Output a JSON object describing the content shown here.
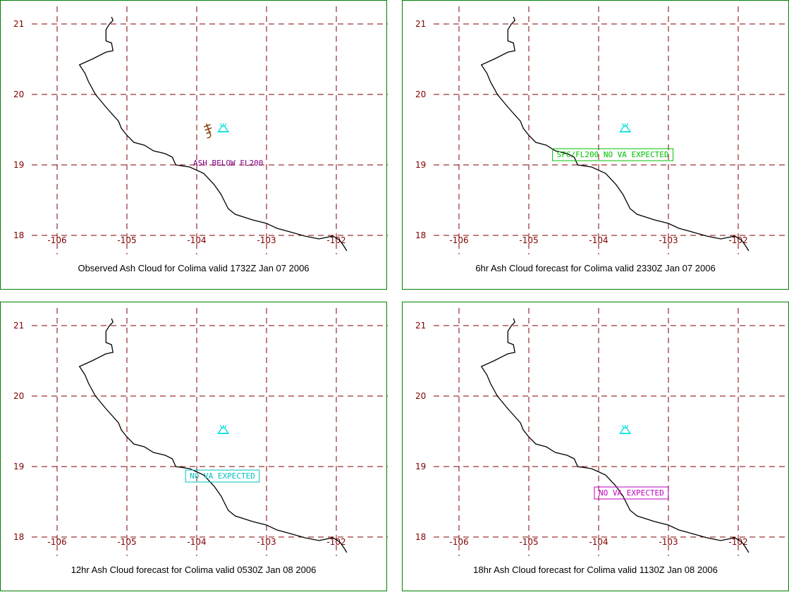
{
  "map": {
    "lon_ticks": [
      "-106",
      "-105",
      "-104",
      "-103",
      "-102"
    ],
    "lat_ticks": [
      "21",
      "20",
      "19",
      "18"
    ],
    "lon_range": [
      -106.65,
      -101.3
    ],
    "lat_range": [
      18.0,
      21.15
    ],
    "colors": {
      "frame": "#008000",
      "grid": "#800000",
      "tick_labels": "#800000",
      "coastline": "#000000",
      "volcano": "#00e0e0"
    },
    "volcano": {
      "name": "Colima",
      "lon": -103.62,
      "lat": 19.51,
      "icon": "volcano-icon"
    },
    "coastline": [
      [
        -105.22,
        21.1
      ],
      [
        -105.2,
        21.05
      ],
      [
        -105.25,
        21.0
      ],
      [
        -105.3,
        20.92
      ],
      [
        -105.3,
        20.76
      ],
      [
        -105.22,
        20.73
      ],
      [
        -105.2,
        20.62
      ],
      [
        -105.3,
        20.6
      ],
      [
        -105.5,
        20.5
      ],
      [
        -105.68,
        20.42
      ],
      [
        -105.6,
        20.3
      ],
      [
        -105.55,
        20.18
      ],
      [
        -105.45,
        20.0
      ],
      [
        -105.3,
        19.82
      ],
      [
        -105.12,
        19.62
      ],
      [
        -105.08,
        19.52
      ],
      [
        -105.0,
        19.42
      ],
      [
        -104.9,
        19.32
      ],
      [
        -104.75,
        19.28
      ],
      [
        -104.62,
        19.2
      ],
      [
        -104.45,
        19.16
      ],
      [
        -104.35,
        19.11
      ],
      [
        -104.3,
        19.0
      ],
      [
        -104.1,
        18.97
      ],
      [
        -103.9,
        18.88
      ],
      [
        -103.75,
        18.72
      ],
      [
        -103.65,
        18.58
      ],
      [
        -103.55,
        18.38
      ],
      [
        -103.45,
        18.3
      ],
      [
        -103.2,
        18.22
      ],
      [
        -103.0,
        18.17
      ],
      [
        -102.85,
        18.1
      ],
      [
        -102.7,
        18.06
      ],
      [
        -102.45,
        17.99
      ],
      [
        -102.25,
        17.95
      ],
      [
        -102.05,
        17.99
      ],
      [
        -101.95,
        17.93
      ],
      [
        -101.9,
        17.86
      ],
      [
        -101.85,
        17.78
      ]
    ]
  },
  "panels": [
    {
      "caption": "Observed Ash Cloud for Colima valid 1732Z Jan 07 2006",
      "label": "ASH BELOW FL200",
      "label_color": "#800080",
      "label_boxed": false,
      "label_lon": -104.05,
      "label_lat": 18.99,
      "has_marker": true,
      "marker": {
        "icon": "ash-marker-icon",
        "color": "#8b4513",
        "lon": -103.83,
        "lat": 19.5
      }
    },
    {
      "caption": "6hr Ash Cloud forecast for Colima valid 2330Z Jan 07 2006",
      "label": "SFC/FL200 NO VA EXPECTED",
      "label_color": "#00c000",
      "label_boxed": true,
      "label_lon": -104.6,
      "label_lat": 19.11,
      "has_marker": false
    },
    {
      "caption": "12hr Ash Cloud forecast for Colima valid 0530Z Jan 08 2006",
      "label": "NO VA EXPECTED",
      "label_color": "#00c0c0",
      "label_boxed": true,
      "label_lon": -104.1,
      "label_lat": 18.83,
      "has_marker": false
    },
    {
      "caption": "18hr Ash Cloud forecast for Colima valid 1130Z Jan 08 2006",
      "label": "NO VA EXPECTED",
      "label_color": "#c000c0",
      "label_boxed": true,
      "label_lon": -104.0,
      "label_lat": 18.59,
      "has_marker": false
    }
  ]
}
